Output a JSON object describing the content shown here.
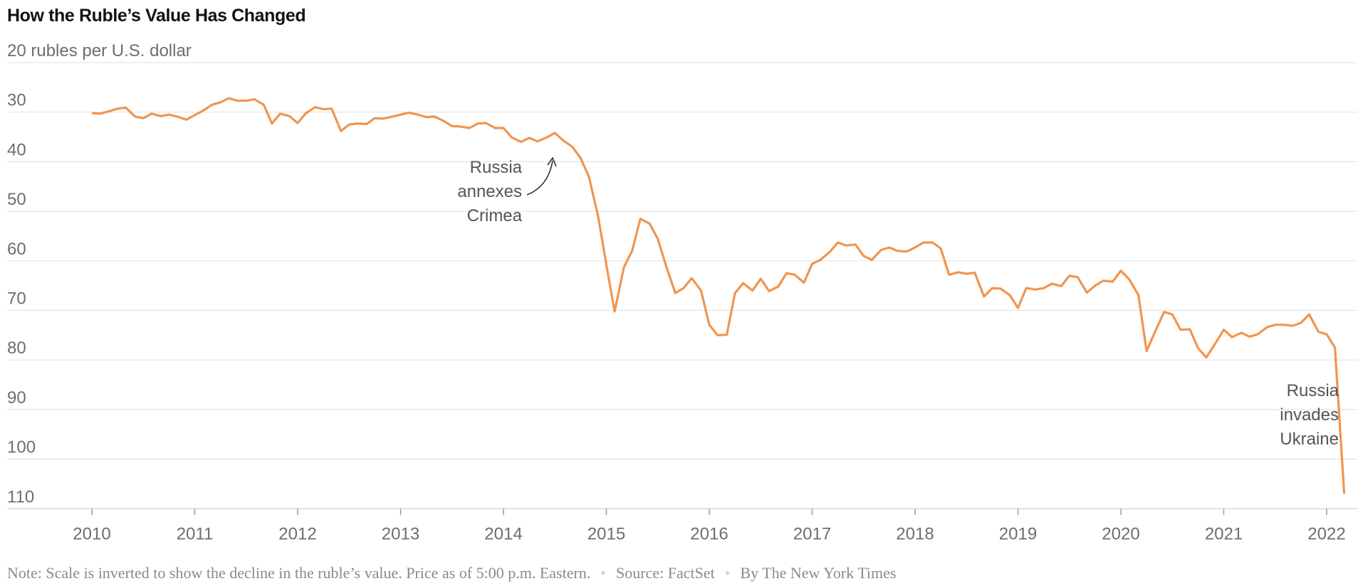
{
  "footer": {
    "note": "Note: Scale is inverted to show the decline in the ruble’s value. Price as of 5:00 p.m. Eastern.",
    "source": "Source: FactSet",
    "byline": "By The New York Times"
  },
  "chart_data": {
    "type": "line",
    "title": "How the Ruble’s Value Has Changed",
    "ylabel": "20 rubles per U.S. dollar",
    "y_inverted": true,
    "ylim": [
      20,
      110
    ],
    "yticks": [
      20,
      30,
      40,
      50,
      60,
      70,
      80,
      90,
      100,
      110
    ],
    "yticklabels": [
      "20 rubles per U.S. dollar",
      "30",
      "40",
      "50",
      "60",
      "70",
      "80",
      "90",
      "100",
      "110"
    ],
    "xlim": [
      2010,
      2022.3
    ],
    "xticks": [
      2010,
      2011,
      2012,
      2013,
      2014,
      2015,
      2016,
      2017,
      2018,
      2019,
      2020,
      2021,
      2022
    ],
    "xticklabels": [
      "2010",
      "2011",
      "2012",
      "2013",
      "2014",
      "2015",
      "2016",
      "2017",
      "2018",
      "2019",
      "2020",
      "2021",
      "2022"
    ],
    "grid": true,
    "line_color": "#f0954f",
    "x": [
      2010.0,
      2010.08,
      2010.17,
      2010.25,
      2010.33,
      2010.42,
      2010.5,
      2010.58,
      2010.67,
      2010.75,
      2010.83,
      2010.92,
      2011.0,
      2011.08,
      2011.17,
      2011.25,
      2011.33,
      2011.42,
      2011.5,
      2011.58,
      2011.67,
      2011.75,
      2011.83,
      2011.92,
      2012.0,
      2012.08,
      2012.17,
      2012.25,
      2012.33,
      2012.42,
      2012.5,
      2012.58,
      2012.67,
      2012.75,
      2012.83,
      2012.92,
      2013.0,
      2013.08,
      2013.17,
      2013.25,
      2013.33,
      2013.42,
      2013.5,
      2013.58,
      2013.67,
      2013.75,
      2013.83,
      2013.92,
      2014.0,
      2014.08,
      2014.17,
      2014.25,
      2014.33,
      2014.42,
      2014.5,
      2014.58,
      2014.67,
      2014.75,
      2014.83,
      2014.92,
      2015.0,
      2015.08,
      2015.17,
      2015.25,
      2015.33,
      2015.42,
      2015.5,
      2015.58,
      2015.67,
      2015.75,
      2015.83,
      2015.92,
      2016.0,
      2016.08,
      2016.17,
      2016.25,
      2016.33,
      2016.42,
      2016.5,
      2016.58,
      2016.67,
      2016.75,
      2016.83,
      2016.92,
      2017.0,
      2017.08,
      2017.17,
      2017.25,
      2017.33,
      2017.42,
      2017.5,
      2017.58,
      2017.67,
      2017.75,
      2017.83,
      2017.92,
      2018.0,
      2018.08,
      2018.17,
      2018.25,
      2018.33,
      2018.42,
      2018.5,
      2018.58,
      2018.67,
      2018.75,
      2018.83,
      2018.92,
      2019.0,
      2019.08,
      2019.17,
      2019.25,
      2019.33,
      2019.42,
      2019.5,
      2019.58,
      2019.67,
      2019.75,
      2019.83,
      2019.92,
      2020.0,
      2020.08,
      2020.17,
      2020.25,
      2020.33,
      2020.42,
      2020.5,
      2020.58,
      2020.67,
      2020.75,
      2020.83,
      2020.92,
      2021.0,
      2021.08,
      2021.17,
      2021.25,
      2021.33,
      2021.42,
      2021.5,
      2021.58,
      2021.67,
      2021.75,
      2021.83,
      2021.92,
      2022.0,
      2022.08,
      2022.17
    ],
    "y": [
      30.2,
      30.3,
      29.8,
      29.3,
      29.1,
      30.9,
      31.2,
      30.3,
      30.8,
      30.5,
      30.9,
      31.5,
      30.6,
      29.7,
      28.5,
      28.0,
      27.2,
      27.7,
      27.7,
      27.4,
      28.5,
      32.3,
      30.3,
      30.8,
      32.2,
      30.2,
      29.0,
      29.4,
      29.3,
      33.8,
      32.5,
      32.3,
      32.4,
      31.2,
      31.3,
      30.9,
      30.5,
      30.1,
      30.5,
      31.0,
      30.9,
      31.8,
      32.8,
      32.9,
      33.2,
      32.3,
      32.2,
      33.2,
      33.2,
      35.1,
      36.0,
      35.2,
      35.9,
      35.1,
      34.2,
      35.7,
      37.0,
      39.3,
      43.0,
      51.0,
      60.8,
      70.2,
      61.3,
      58.0,
      51.5,
      52.5,
      55.6,
      61.0,
      66.5,
      65.5,
      63.5,
      66.0,
      72.9,
      75.0,
      74.9,
      66.5,
      64.5,
      66.0,
      63.6,
      66.1,
      65.2,
      62.5,
      62.8,
      64.4,
      60.6,
      59.8,
      58.2,
      56.3,
      56.9,
      56.7,
      59.0,
      59.8,
      57.8,
      57.3,
      58.0,
      58.1,
      57.3,
      56.3,
      56.3,
      57.5,
      62.8,
      62.3,
      62.6,
      62.4,
      67.2,
      65.5,
      65.6,
      66.9,
      69.5,
      65.5,
      65.8,
      65.5,
      64.6,
      65.1,
      63.0,
      63.3,
      66.4,
      65.0,
      64.0,
      64.2,
      62.0,
      63.7,
      66.9,
      78.2,
      74.4,
      70.3,
      70.8,
      73.9,
      73.8,
      77.6,
      79.5,
      76.6,
      73.9,
      75.4,
      74.5,
      75.3,
      74.8,
      73.4,
      72.9,
      72.9,
      73.1,
      72.5,
      70.8,
      74.3,
      74.8,
      77.5,
      107.0
    ]
  },
  "annotations": [
    {
      "lines": [
        "Russia",
        "annexes",
        "Crimea"
      ]
    },
    {
      "lines": [
        "Russia",
        "invades",
        "Ukraine"
      ]
    }
  ]
}
